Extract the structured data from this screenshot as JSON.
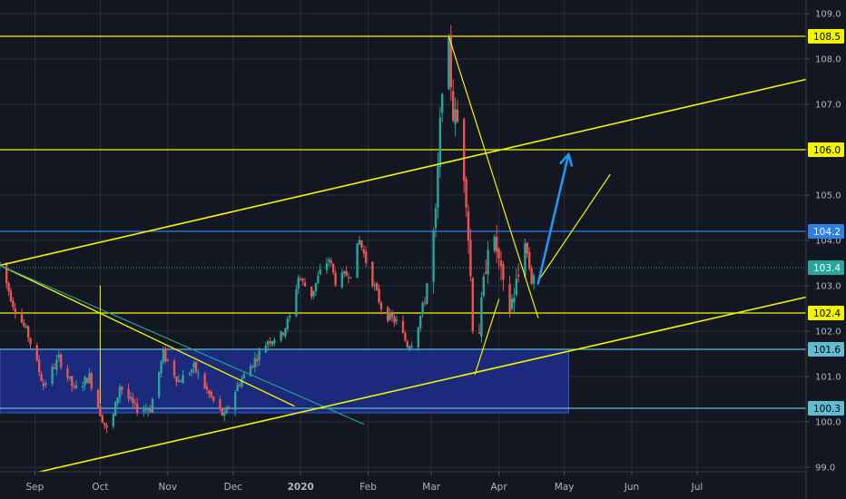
{
  "chart_data": {
    "type": "candlestick",
    "title": "",
    "xlabel": "",
    "ylabel": "",
    "ylim": [
      98.9,
      109.3
    ],
    "x_range": [
      "2019-08-16",
      "2020-08-20"
    ],
    "y_ticks": [
      99.0,
      100.0,
      101.0,
      102.0,
      103.0,
      104.0,
      105.0,
      106.0,
      107.0,
      108.0,
      109.0
    ],
    "x_ticks": [
      {
        "date": "2019-09-01",
        "label": "Sep",
        "bold": false
      },
      {
        "date": "2019-10-01",
        "label": "Oct",
        "bold": false
      },
      {
        "date": "2019-11-01",
        "label": "Nov",
        "bold": false
      },
      {
        "date": "2019-12-01",
        "label": "Dec",
        "bold": false
      },
      {
        "date": "2020-01-01",
        "label": "2020",
        "bold": true
      },
      {
        "date": "2020-02-01",
        "label": "Feb",
        "bold": false
      },
      {
        "date": "2020-03-01",
        "label": "Mar",
        "bold": false
      },
      {
        "date": "2020-04-01",
        "label": "Apr",
        "bold": false
      },
      {
        "date": "2020-05-01",
        "label": "May",
        "bold": false
      },
      {
        "date": "2020-06-01",
        "label": "Jun",
        "bold": false
      },
      {
        "date": "2020-07-01",
        "label": "Jul",
        "bold": false
      }
    ],
    "colors": {
      "background": "#131722",
      "grid": "#2a2e39",
      "up": "#26a69a",
      "down": "#ef5350",
      "yellow": "#f5f500",
      "light_blue": "#5fbcd3",
      "blue_line": "#2f7fe6",
      "zone_fill": "#1d2f96",
      "zone_border": "#3a5bd9",
      "teal_line": "#2a9d8f",
      "arrow": "#2196f3",
      "current_price": "#26a69a",
      "axis_text": "#b2b5be"
    },
    "anchor_points": [
      [
        "2019-08-16",
        103.5
      ],
      [
        "2019-08-22",
        102.6
      ],
      [
        "2019-08-29",
        101.9
      ],
      [
        "2019-09-05",
        100.8
      ],
      [
        "2019-09-12",
        101.4
      ],
      [
        "2019-09-19",
        100.7
      ],
      [
        "2019-09-26",
        101.0
      ],
      [
        "2019-10-01",
        100.2
      ],
      [
        "2019-10-05",
        99.7
      ],
      [
        "2019-10-10",
        100.8
      ],
      [
        "2019-10-17",
        100.3
      ],
      [
        "2019-10-24",
        100.3
      ],
      [
        "2019-10-30",
        101.5
      ],
      [
        "2019-11-06",
        100.9
      ],
      [
        "2019-11-13",
        101.2
      ],
      [
        "2019-11-20",
        100.6
      ],
      [
        "2019-11-27",
        100.1
      ],
      [
        "2019-12-03",
        100.8
      ],
      [
        "2019-12-10",
        101.3
      ],
      [
        "2019-12-17",
        101.8
      ],
      [
        "2019-12-23",
        101.9
      ],
      [
        "2019-12-27",
        102.3
      ],
      [
        "2019-12-31",
        103.2
      ],
      [
        "2020-01-06",
        102.8
      ],
      [
        "2020-01-10",
        103.3
      ],
      [
        "2020-01-14",
        103.6
      ],
      [
        "2020-01-17",
        103.1
      ],
      [
        "2020-01-24",
        103.3
      ],
      [
        "2020-01-28",
        104.0
      ],
      [
        "2020-02-03",
        103.1
      ],
      [
        "2020-02-08",
        102.4
      ],
      [
        "2020-02-14",
        102.2
      ],
      [
        "2020-02-19",
        101.7
      ],
      [
        "2020-02-22",
        101.8
      ],
      [
        "2020-02-27",
        102.7
      ],
      [
        "2020-03-03",
        104.5
      ],
      [
        "2020-03-06",
        107.5
      ],
      [
        "2020-03-09",
        108.2
      ],
      [
        "2020-03-11",
        106.8
      ],
      [
        "2020-03-14",
        106.5
      ],
      [
        "2020-03-17",
        105.0
      ],
      [
        "2020-03-19",
        103.2
      ],
      [
        "2020-03-21",
        101.2
      ],
      [
        "2020-03-24",
        102.5
      ],
      [
        "2020-03-27",
        104.0
      ],
      [
        "2020-03-31",
        103.8
      ],
      [
        "2020-04-04",
        102.6
      ],
      [
        "2020-04-06",
        102.5
      ],
      [
        "2020-04-10",
        103.2
      ],
      [
        "2020-04-13",
        104.0
      ],
      [
        "2020-04-16",
        103.1
      ],
      [
        "2020-04-18",
        103.4
      ]
    ],
    "overlays": {
      "horizontal_lines": [
        {
          "value": 108.5,
          "label": "108.5",
          "style": "yellow"
        },
        {
          "value": 106.0,
          "label": "106.0",
          "style": "yellow"
        },
        {
          "value": 104.2,
          "label": "104.2",
          "style": "blue"
        },
        {
          "value": 103.4,
          "label": "103.4",
          "style": "current"
        },
        {
          "value": 102.4,
          "label": "102.4",
          "style": "yellow"
        },
        {
          "value": 101.6,
          "label": "101.6",
          "style": "light_blue"
        },
        {
          "value": 100.3,
          "label": "100.3",
          "style": "light_blue"
        }
      ],
      "zone": {
        "x1": "2019-08-16",
        "x2": "2020-05-03",
        "y1": 100.2,
        "y2": 101.6
      },
      "trend_lines": [
        {
          "from": [
            "2019-08-16",
            103.45
          ],
          "to": [
            "2020-08-20",
            107.55
          ],
          "color": "yellow",
          "width": 1.6
        },
        {
          "from": [
            "2019-08-16",
            103.45
          ],
          "to": [
            "2019-12-29",
            100.35
          ],
          "color": "yellow",
          "width": 1.3
        },
        {
          "from": [
            "2019-08-16",
            103.45
          ],
          "to": [
            "2020-01-30",
            99.95
          ],
          "color": "teal",
          "width": 1.2
        },
        {
          "from": [
            "2019-08-25",
            98.8
          ],
          "to": [
            "2020-08-20",
            102.75
          ],
          "color": "yellow",
          "width": 1.6
        },
        {
          "from": [
            "2020-03-09",
            108.5
          ],
          "to": [
            "2020-04-19",
            102.3
          ],
          "color": "yellow",
          "width": 1.2
        },
        {
          "from": [
            "2020-03-21",
            101.05
          ],
          "to": [
            "2020-04-01",
            102.7
          ],
          "color": "yellow",
          "width": 1.2
        },
        {
          "from": [
            "2020-04-19",
            103.1
          ],
          "to": [
            "2020-05-22",
            105.45
          ],
          "color": "yellow",
          "width": 1.2
        },
        {
          "from": [
            "2019-10-01",
            103.0
          ],
          "to": [
            "2019-10-01",
            100.4
          ],
          "color": "yellow",
          "width": 1.0
        }
      ],
      "projection_arrow": {
        "from": [
          "2020-04-19",
          103.05
        ],
        "to": [
          "2020-05-03",
          105.9
        ]
      }
    }
  }
}
